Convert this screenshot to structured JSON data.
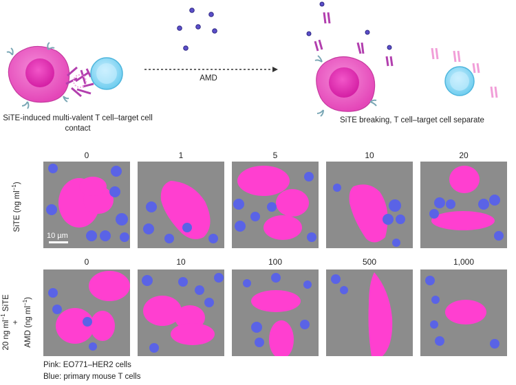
{
  "schematic": {
    "left_caption": "SiTE-induced multi-valent T cell–target cell contact",
    "arrow_label": "AMD",
    "right_caption": "SiTE breaking, T cell–target cell separate"
  },
  "rows": [
    {
      "label_line1": "SiTE (ng ml",
      "label_sup": "−1",
      "label_line2": ")",
      "columns": [
        "0",
        "1",
        "5",
        "10",
        "20"
      ]
    },
    {
      "label_line1": "20 ng ml",
      "label_sup": "−1",
      "label_line1b": " SiTE",
      "label_plus": "+",
      "label_line2": "AMD (ng ml",
      "label_sup2": "−1",
      "label_line2b": ")",
      "columns": [
        "0",
        "10",
        "100",
        "500",
        "1,000"
      ]
    }
  ],
  "scale_bar": "10 µm",
  "legend": {
    "pink": "Pink: EO771–HER2 cells",
    "blue": "Blue: primary mouse T cells"
  },
  "colors": {
    "pink": "#ff3fd0",
    "blue": "#5a63e6",
    "panel_bg": "#8c8c8c",
    "tcell": "#9fdcf3",
    "target": "#ea4fbf"
  }
}
